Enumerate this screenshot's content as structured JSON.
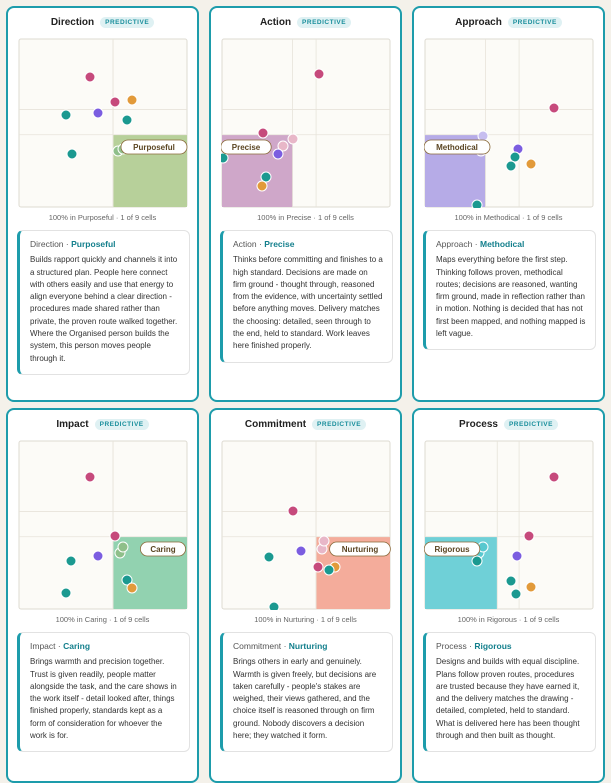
{
  "sep": "·",
  "cards": [
    {
      "title": "Direction",
      "badge": "PREDICTIVE",
      "cell": "Purposeful",
      "caption": "100% in Purposeful · 1 of 9 cells",
      "body": "Builds rapport quickly and channels it into a structured plan. People here connect with others easily and use that energy to align everyone behind a clear direction - procedures made shared rather than private, the proven route walked together. Where the Organised person builds the system, this person moves people through it."
    },
    {
      "title": "Action",
      "badge": "PREDICTIVE",
      "cell": "Precise",
      "caption": "100% in Precise · 1 of 9 cells",
      "body": "Thinks before committing and finishes to a high standard. Decisions are made on firm ground - thought through, reasoned from the evidence, with uncertainty settled before anything moves. Delivery matches the choosing: detailed, seen through to the end, held to standard. Work leaves here finished properly."
    },
    {
      "title": "Approach",
      "badge": "PREDICTIVE",
      "cell": "Methodical",
      "caption": "100% in Methodical · 1 of 9 cells",
      "body": "Maps everything before the first step. Thinking follows proven, methodical routes; decisions are reasoned, wanting firm ground, made in reflection rather than in motion. Nothing is decided that has not first been mapped, and nothing mapped is left vague."
    },
    {
      "title": "Impact",
      "badge": "PREDICTIVE",
      "cell": "Caring",
      "caption": "100% in Caring · 1 of 9 cells",
      "body": "Brings warmth and precision together. Trust is given readily, people matter alongside the task, and the care shows in the work itself - detail looked after, things finished properly, standards kept as a form of consideration for whoever the work is for."
    },
    {
      "title": "Commitment",
      "badge": "PREDICTIVE",
      "cell": "Nurturing",
      "caption": "100% in Nurturing · 1 of 9 cells",
      "body": "Brings others in early and genuinely. Warmth is given freely, but decisions are taken carefully - people's stakes are weighed, their views gathered, and the choice itself is reasoned through on firm ground. Nobody discovers a decision here; they watched it form."
    },
    {
      "title": "Process",
      "badge": "PREDICTIVE",
      "cell": "Rigorous",
      "caption": "100% in Rigorous · 1 of 9 cells",
      "body": "Designs and builds with equal discipline. Plans follow proven routes, procedures are trusted because they have earned it, and the delivery matches the drawing - detailed, completed, held to standard. What is delivered here has been thought through and then built as thought."
    }
  ]
}
